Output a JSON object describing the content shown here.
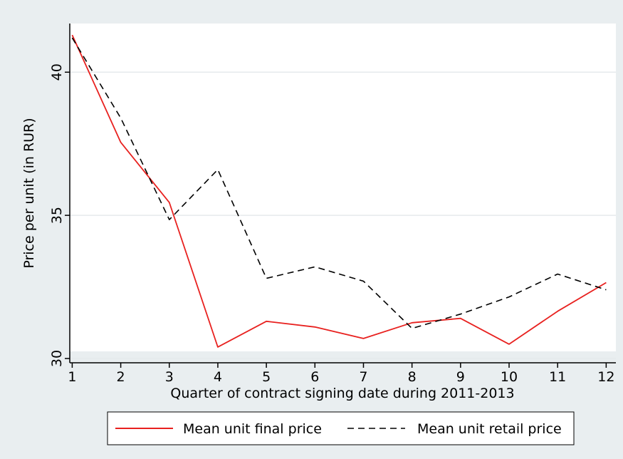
{
  "chart_data": {
    "type": "line",
    "xlabel": "Quarter of contract signing date during 2011-2013",
    "ylabel": "Price per unit (in RUR)",
    "x": [
      1,
      2,
      3,
      4,
      5,
      6,
      7,
      8,
      9,
      10,
      11,
      12
    ],
    "x_ticks": [
      "1",
      "2",
      "3",
      "4",
      "5",
      "6",
      "7",
      "8",
      "9",
      "10",
      "11",
      "12"
    ],
    "xlim": [
      0.95,
      12.2
    ],
    "y_ticks": [
      30,
      35,
      40
    ],
    "ylim": [
      29.85,
      41.7
    ],
    "grid": true,
    "legend_position": "bottom",
    "series": [
      {
        "name": "Mean unit final price",
        "color": "#e8211f",
        "style": "solid",
        "values": [
          41.3,
          37.55,
          35.45,
          30.4,
          31.3,
          31.1,
          30.7,
          31.25,
          31.4,
          30.5,
          31.65,
          32.65
        ]
      },
      {
        "name": "Mean unit retail price",
        "color": "#000000",
        "style": "dashed",
        "values": [
          41.2,
          38.4,
          34.85,
          36.6,
          32.8,
          33.2,
          32.7,
          31.05,
          31.55,
          32.15,
          32.95,
          32.4
        ]
      }
    ]
  }
}
